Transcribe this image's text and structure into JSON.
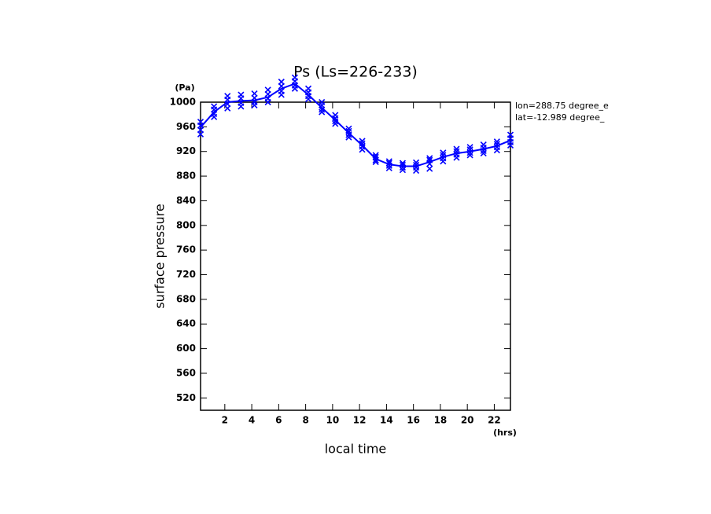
{
  "chart_data": {
    "type": "line",
    "title": "Ps (Ls=226-233)",
    "y_unit": "(Pa)",
    "x_unit": "(hrs)",
    "ylabel": "surface pressure",
    "xlabel": "local time",
    "annotations": [
      "lon=288.75 degree_e",
      "lat=-12.989 degree_"
    ],
    "x": [
      0.2,
      1.2,
      2.2,
      3.2,
      4.2,
      5.2,
      6.2,
      7.2,
      8.2,
      9.2,
      10.2,
      11.2,
      12.2,
      13.2,
      14.2,
      15.2,
      16.2,
      17.2,
      18.2,
      19.2,
      20.2,
      21.2,
      22.2,
      23.2
    ],
    "series": [
      {
        "color": "#0000ff",
        "values": [
          959,
          984,
          1000,
          1002,
          1003,
          1008,
          1022,
          1030,
          1012,
          991,
          971,
          950,
          930,
          908,
          899,
          896,
          896,
          903,
          911,
          917,
          920,
          924,
          929,
          938
        ]
      }
    ],
    "samples": [
      [
        948,
        955,
        962,
        968
      ],
      [
        976,
        981,
        988,
        993
      ],
      [
        990,
        997,
        1004,
        1010
      ],
      [
        993,
        999,
        1006,
        1012
      ],
      [
        995,
        1000,
        1007,
        1014
      ],
      [
        1000,
        1006,
        1013,
        1020
      ],
      [
        1012,
        1018,
        1026,
        1033
      ],
      [
        1022,
        1027,
        1034,
        1040
      ],
      [
        1005,
        1010,
        1016,
        1022
      ],
      [
        984,
        988,
        995,
        1000
      ],
      [
        965,
        969,
        974,
        979
      ],
      [
        943,
        947,
        953,
        957
      ],
      [
        923,
        928,
        933,
        937
      ],
      [
        903,
        906,
        911,
        914
      ],
      [
        893,
        897,
        901,
        904
      ],
      [
        890,
        894,
        898,
        901
      ],
      [
        889,
        894,
        898,
        902
      ],
      [
        892,
        900,
        906,
        909
      ],
      [
        904,
        909,
        914,
        918
      ],
      [
        910,
        915,
        920,
        924
      ],
      [
        914,
        918,
        923,
        927
      ],
      [
        917,
        921,
        926,
        931
      ],
      [
        922,
        927,
        932,
        936
      ],
      [
        930,
        935,
        941,
        947
      ]
    ],
    "xlim": [
      0.2,
      23.2
    ],
    "ylim": [
      500,
      1000
    ],
    "xticks": [
      2,
      4,
      6,
      8,
      10,
      12,
      14,
      16,
      18,
      20,
      22
    ],
    "yticks": [
      520,
      560,
      600,
      640,
      680,
      720,
      760,
      800,
      840,
      880,
      920,
      960,
      1000
    ]
  }
}
